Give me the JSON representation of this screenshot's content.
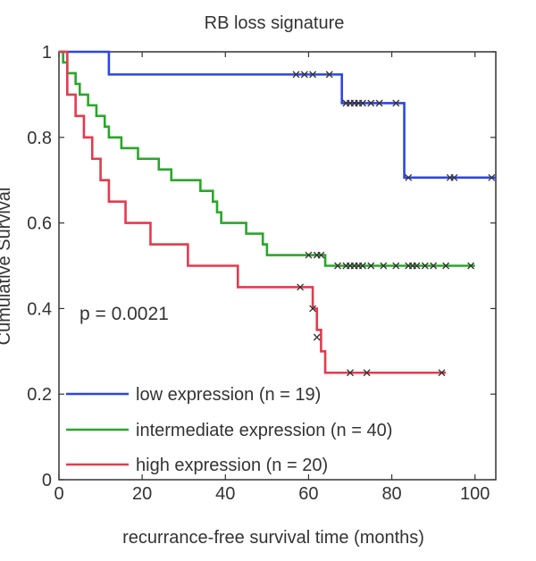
{
  "chart_data": {
    "type": "line",
    "title": "RB loss signature",
    "xlabel": "recurrance-free survival time (months)",
    "ylabel": "Cumulative Survival",
    "xlim": [
      0,
      105
    ],
    "ylim": [
      0,
      1
    ],
    "xticks": [
      0,
      20,
      40,
      60,
      80,
      100
    ],
    "xtick_labels": [
      "0",
      "20",
      "40",
      "60",
      "80",
      "100"
    ],
    "yticks": [
      0,
      0.2,
      0.4,
      0.6,
      0.8,
      1
    ],
    "ytick_labels": [
      "0",
      "0.2",
      "0.4",
      "0.6",
      "0.8",
      "1"
    ],
    "annotation": "p = 0.0021",
    "legend_position": "bottom-left",
    "grid": false,
    "series": [
      {
        "name": "low expression (n = 19)",
        "color": "#2c45e8",
        "steps": [
          [
            0,
            1
          ],
          [
            12,
            0.947
          ],
          [
            68,
            0.88
          ],
          [
            83,
            0.706
          ],
          [
            105,
            0.706
          ]
        ],
        "censored": [
          [
            57,
            0.947
          ],
          [
            59,
            0.947
          ],
          [
            61,
            0.947
          ],
          [
            65,
            0.947
          ],
          [
            69,
            0.88
          ],
          [
            70,
            0.88
          ],
          [
            71,
            0.88
          ],
          [
            72,
            0.88
          ],
          [
            73,
            0.88
          ],
          [
            75,
            0.88
          ],
          [
            77,
            0.88
          ],
          [
            81,
            0.88
          ],
          [
            84,
            0.706
          ],
          [
            94,
            0.706
          ],
          [
            95,
            0.706
          ],
          [
            104,
            0.706
          ]
        ]
      },
      {
        "name": "intermediate expression (n = 40)",
        "color": "#2aa62a",
        "steps": [
          [
            0,
            1
          ],
          [
            1,
            0.975
          ],
          [
            2,
            0.95
          ],
          [
            4,
            0.925
          ],
          [
            5,
            0.9
          ],
          [
            7,
            0.875
          ],
          [
            9,
            0.85
          ],
          [
            11,
            0.825
          ],
          [
            12,
            0.8
          ],
          [
            15,
            0.775
          ],
          [
            19,
            0.75
          ],
          [
            24,
            0.725
          ],
          [
            27,
            0.7
          ],
          [
            34,
            0.675
          ],
          [
            37,
            0.65
          ],
          [
            38,
            0.625
          ],
          [
            39,
            0.6
          ],
          [
            45,
            0.575
          ],
          [
            49,
            0.55
          ],
          [
            50,
            0.525
          ],
          [
            64,
            0.5
          ],
          [
            100,
            0.5
          ]
        ],
        "censored": [
          [
            60,
            0.525
          ],
          [
            62,
            0.525
          ],
          [
            63,
            0.525
          ],
          [
            67,
            0.5
          ],
          [
            69,
            0.5
          ],
          [
            70,
            0.5
          ],
          [
            71,
            0.5
          ],
          [
            72,
            0.5
          ],
          [
            73,
            0.5
          ],
          [
            75,
            0.5
          ],
          [
            78,
            0.5
          ],
          [
            81,
            0.5
          ],
          [
            84,
            0.5
          ],
          [
            85,
            0.5
          ],
          [
            86,
            0.5
          ],
          [
            88,
            0.5
          ],
          [
            90,
            0.5
          ],
          [
            93,
            0.5
          ],
          [
            99,
            0.5
          ]
        ]
      },
      {
        "name": "high expression (n = 20)",
        "color": "#e43a4e",
        "steps": [
          [
            0,
            1
          ],
          [
            2,
            0.9
          ],
          [
            4,
            0.85
          ],
          [
            6,
            0.8
          ],
          [
            8,
            0.75
          ],
          [
            10,
            0.7
          ],
          [
            12,
            0.65
          ],
          [
            16,
            0.6
          ],
          [
            22,
            0.55
          ],
          [
            31,
            0.5
          ],
          [
            43,
            0.45
          ],
          [
            61,
            0.4
          ],
          [
            62,
            0.35
          ],
          [
            63,
            0.3
          ],
          [
            64,
            0.25
          ],
          [
            93,
            0.25
          ]
        ],
        "censored": [
          [
            58,
            0.45
          ],
          [
            61,
            0.4
          ],
          [
            62,
            0.333
          ],
          [
            70,
            0.25
          ],
          [
            74,
            0.25
          ],
          [
            92,
            0.25
          ]
        ]
      }
    ]
  }
}
